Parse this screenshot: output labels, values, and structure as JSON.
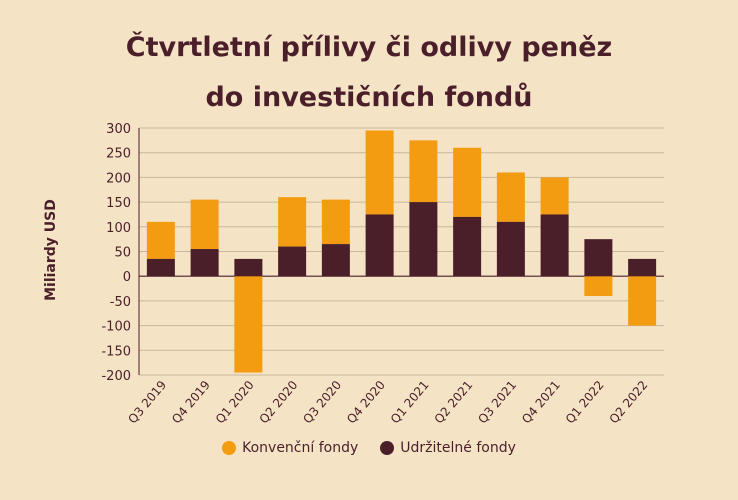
{
  "chart_data": {
    "type": "bar",
    "stacked": true,
    "title_lines": [
      "Čtvrtletní přílivy či odlivy peněz",
      "do investičních fondů"
    ],
    "xlabel": "",
    "ylabel": "Miliardy USD",
    "ylim": [
      -200,
      300
    ],
    "yticks": [
      300,
      250,
      200,
      150,
      100,
      50,
      0,
      -50,
      -100,
      -150,
      -200
    ],
    "grid": true,
    "legend_position": "bottom",
    "categories": [
      "Q3 2019",
      "Q4 2019",
      "Q1 2020",
      "Q2 2020",
      "Q3 2020",
      "Q4 2020",
      "Q1 2021",
      "Q2 2021",
      "Q3 2021",
      "Q4 2021",
      "Q1 2022",
      "Q2 2022"
    ],
    "series": [
      {
        "name": "Konvenční fondy",
        "color": "#f39c12",
        "values": [
          75,
          100,
          -195,
          100,
          90,
          170,
          125,
          140,
          100,
          75,
          -40,
          -100
        ]
      },
      {
        "name": "Udržitelné fondy",
        "color": "#4a1f2a",
        "values": [
          35,
          55,
          35,
          60,
          65,
          125,
          150,
          120,
          110,
          125,
          75,
          35
        ]
      }
    ]
  }
}
